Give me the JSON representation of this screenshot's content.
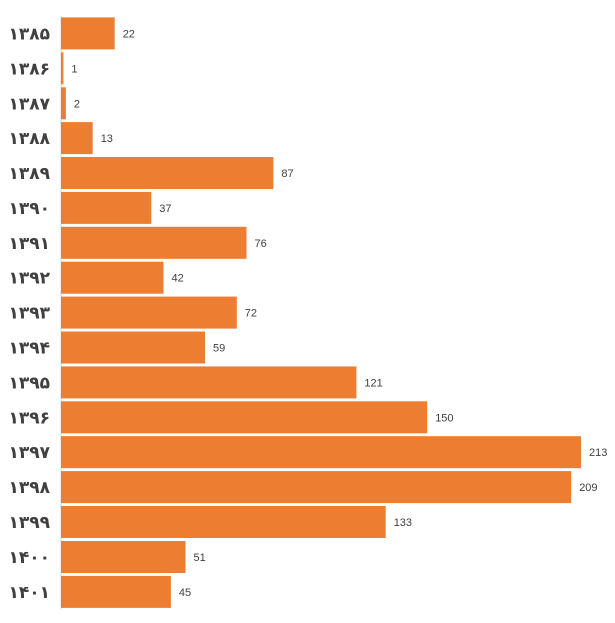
{
  "chart_data": {
    "type": "bar",
    "orientation": "horizontal",
    "categories": [
      "۱۳۸۵",
      "۱۳۸۶",
      "۱۳۸۷",
      "۱۳۸۸",
      "۱۳۸۹",
      "۱۳۹۰",
      "۱۳۹۱",
      "۱۳۹۲",
      "۱۳۹۳",
      "۱۳۹۴",
      "۱۳۹۵",
      "۱۳۹۶",
      "۱۳۹۷",
      "۱۳۹۸",
      "۱۳۹۹",
      "۱۴۰۰",
      "۱۴۰۱"
    ],
    "values": [
      22,
      1,
      2,
      13,
      87,
      37,
      76,
      42,
      72,
      59,
      121,
      150,
      213,
      209,
      133,
      51,
      45
    ],
    "value_labels": [
      "22",
      "1",
      "2",
      "13",
      "87",
      "37",
      "76",
      "42",
      "72",
      "59",
      "121",
      "150",
      "213",
      "209",
      "133",
      "51",
      "45"
    ],
    "xlim": [
      0,
      213
    ],
    "bar_color": "#ED7D31",
    "axis_color": "#D9D9D9",
    "grid": false,
    "legend": "none"
  }
}
